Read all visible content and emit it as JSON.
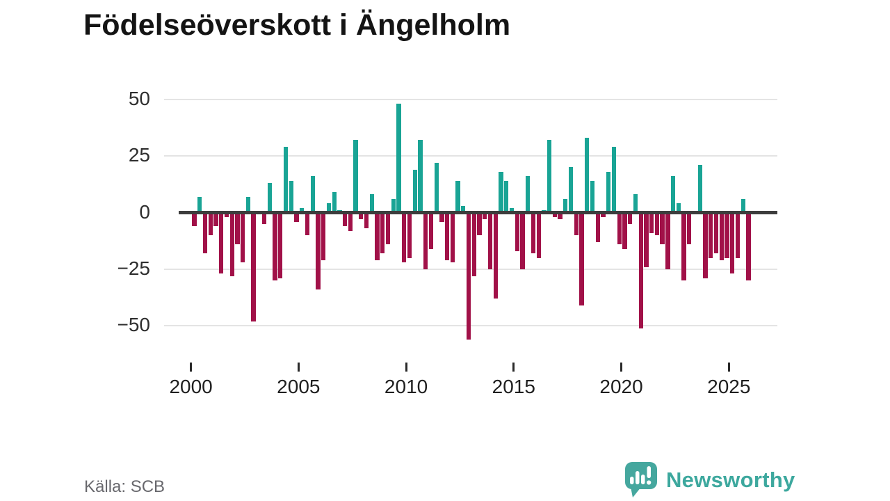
{
  "title": "Födelseöverskott i Ängelholm",
  "source": "Källa: SCB",
  "branding": {
    "name": "Newsworthy",
    "color": "#3da89e"
  },
  "colors": {
    "positive": "#19a495",
    "negative": "#a11148",
    "zero_line": "#3d3d3d",
    "gridline": "#e4e4e4",
    "title_text": "#141414",
    "axis_text": "#2e2e2e",
    "source_text": "#68686d"
  },
  "chart_data": {
    "type": "bar",
    "title": "Födelseöverskott i Ängelholm",
    "frequency": "quarterly",
    "x_start_year": 2000,
    "x_end_label": "2025 Q4",
    "values": [
      -6,
      7,
      -18,
      -10,
      -6,
      -27,
      -2,
      -28,
      -14,
      -22,
      7,
      -48,
      0,
      -5,
      13,
      -30,
      -29,
      29,
      14,
      -4,
      2,
      -10,
      16,
      -34,
      -21,
      4,
      9,
      1,
      -6,
      -8,
      32,
      -3,
      -7,
      8,
      -21,
      -18,
      -14,
      6,
      48,
      -22,
      -20,
      19,
      32,
      -25,
      -16,
      22,
      -4,
      -21,
      -22,
      14,
      3,
      -56,
      -28,
      -10,
      -3,
      -25,
      -38,
      18,
      14,
      2,
      -17,
      -25,
      16,
      -18,
      -20,
      1,
      32,
      -2,
      -3,
      6,
      20,
      -10,
      -41,
      33,
      14,
      -13,
      -2,
      18,
      29,
      -14,
      -16,
      -5,
      8,
      -51,
      -24,
      -9,
      -10,
      -14,
      -25,
      16,
      4,
      -30,
      -14,
      0,
      21,
      -29,
      -20,
      -18,
      -21,
      -20,
      -27,
      -20,
      6,
      -30
    ],
    "x_tick_labels": [
      "2000",
      "2005",
      "2010",
      "2015",
      "2020",
      "2025"
    ],
    "y_ticks": [
      50,
      25,
      0,
      -25,
      -50
    ],
    "ylim": [
      -60,
      55
    ],
    "grid": "horizontal",
    "legend": "none",
    "positive_color": "#19a495",
    "negative_color": "#a11148"
  }
}
